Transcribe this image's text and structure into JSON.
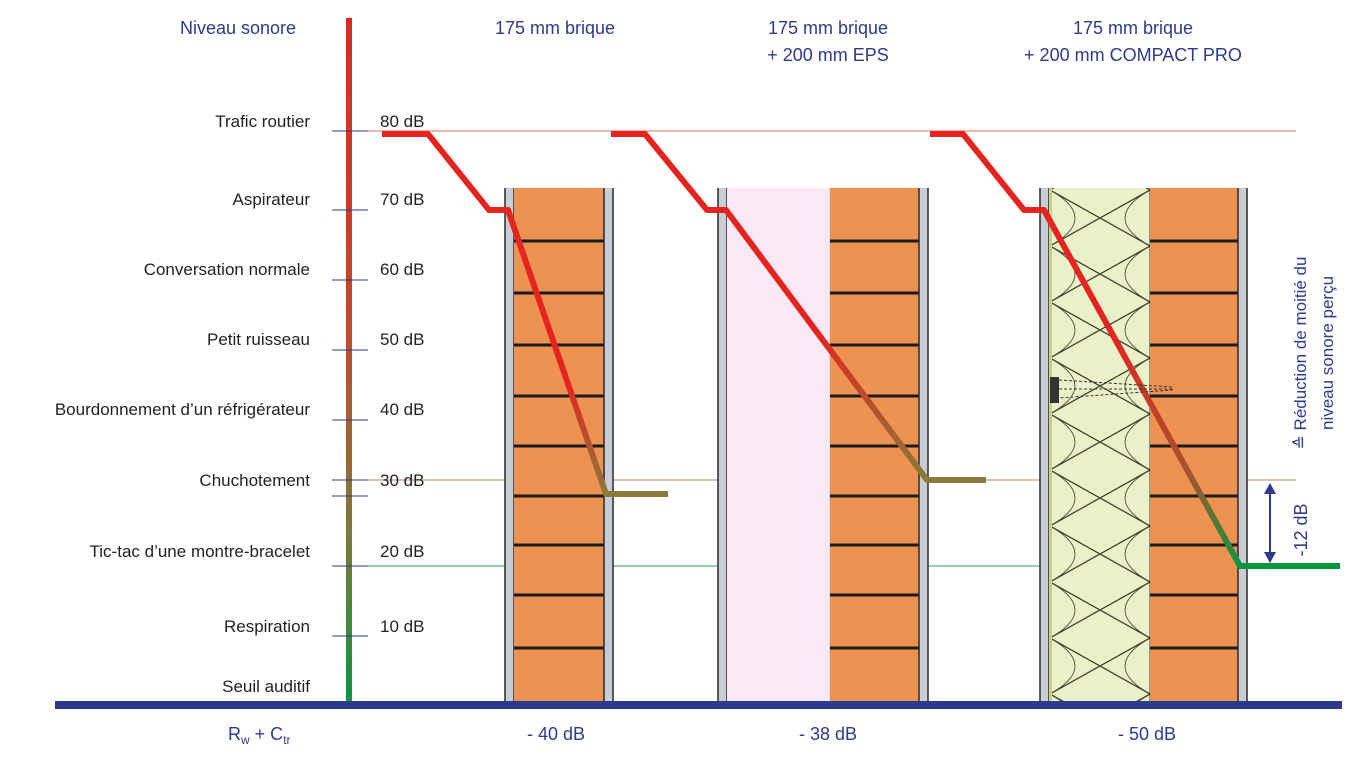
{
  "header": {
    "level_title": "Niveau sonore",
    "columns": [
      {
        "line1": "175 mm brique",
        "line2": ""
      },
      {
        "line1": "175 mm brique",
        "line2": "+ 200 mm EPS"
      },
      {
        "line1": "175 mm brique",
        "line2": "+ 200 mm COMPACT PRO"
      }
    ]
  },
  "levels": [
    {
      "name": "Trafic routier",
      "db": "80 dB"
    },
    {
      "name": "Aspirateur",
      "db": "70 dB"
    },
    {
      "name": "Conversation normale",
      "db": "60 dB"
    },
    {
      "name": "Petit ruisseau",
      "db": "50 dB"
    },
    {
      "name": "Bourdonnement d’un réfrigérateur",
      "db": "40 dB"
    },
    {
      "name": "Chuchotement",
      "db": "30 dB"
    },
    {
      "name": "Tic-tac d’une montre-bracelet",
      "db": "20 dB"
    },
    {
      "name": "Respiration",
      "db": "10 dB"
    },
    {
      "name": "Seuil auditif",
      "db": ""
    }
  ],
  "footer": {
    "rating_main": "R",
    "rating_sub1": "w",
    "rating_plus": " + C",
    "rating_sub2": "tr",
    "reductions": [
      "- 40 dB",
      "- 38 dB",
      "- 50 dB"
    ]
  },
  "annotation": {
    "delta": "-12 dB",
    "text_line1": "≙ Réduction de moitié du",
    "text_line2": "niveau sonore perçu"
  },
  "colors": {
    "blue_text": "#2e3a8c",
    "baseline": "#2e3a8c",
    "brick": "#ee9251",
    "red": "#e52420",
    "olive": "#8a7a3a",
    "green": "#0a9640",
    "eps": "#fae8f4",
    "insulation": "#eaf1c8"
  }
}
